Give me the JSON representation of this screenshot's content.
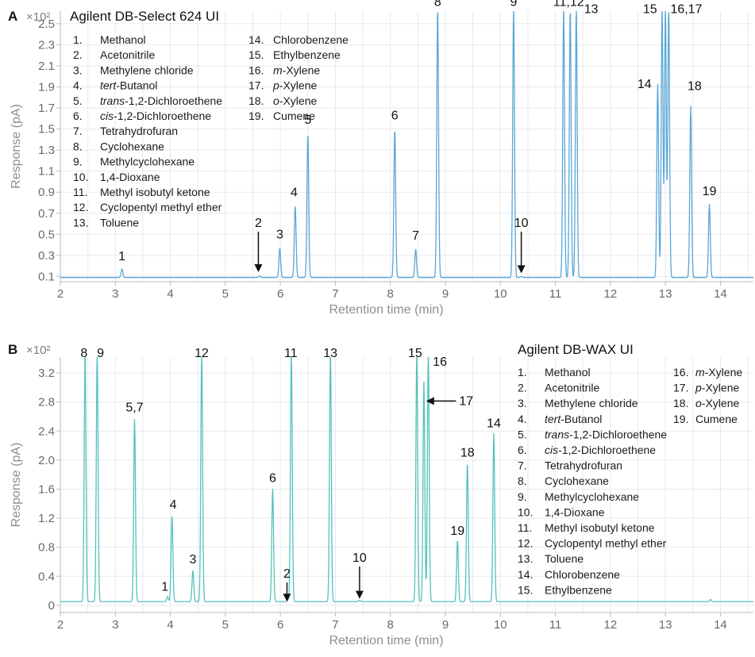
{
  "chart_data": [
    {
      "panel": "A",
      "type": "line",
      "title": "Agilent DB-Select 624 UI",
      "xlabel": "Retention time (min)",
      "ylabel": "Response (pA)",
      "y_multiplier": "×10²",
      "xlim": [
        2.0,
        14.6
      ],
      "ylim": [
        0.05,
        2.62
      ],
      "x_ticks": [
        "2",
        "3",
        "4",
        "5",
        "6",
        "7",
        "8",
        "9",
        "10",
        "11",
        "12",
        "13",
        "14"
      ],
      "y_ticks": [
        "0.1",
        "0.3",
        "0.5",
        "0.7",
        "0.9",
        "1.1",
        "1.3",
        "1.5",
        "1.7",
        "1.9",
        "2.1",
        "2.3",
        "2.5"
      ],
      "color": "#5aa6d6",
      "baseline": 0.09,
      "peaks": [
        {
          "label": "1",
          "rt": 3.12,
          "height": 0.17
        },
        {
          "label": "2",
          "rt": 5.62,
          "height": 0.105
        },
        {
          "label": "3",
          "rt": 5.99,
          "height": 0.37
        },
        {
          "label": "4",
          "rt": 6.27,
          "height": 0.77
        },
        {
          "label": "5",
          "rt": 6.5,
          "height": 1.46
        },
        {
          "label": "6",
          "rt": 8.08,
          "height": 1.5
        },
        {
          "label": "7",
          "rt": 8.46,
          "height": 0.36
        },
        {
          "label": "8",
          "rt": 8.86,
          "height": 2.65
        },
        {
          "label": "9",
          "rt": 10.24,
          "height": 2.65
        },
        {
          "label": "10",
          "rt": 10.38,
          "height": 0.1
        },
        {
          "label": "11",
          "rt": 11.15,
          "height": 2.65
        },
        {
          "label": "12",
          "rt": 11.27,
          "height": 2.65
        },
        {
          "label": "13",
          "rt": 11.38,
          "height": 2.65
        },
        {
          "label": "14",
          "rt": 12.86,
          "height": 1.93
        },
        {
          "label": "15",
          "rt": 12.94,
          "height": 2.65
        },
        {
          "label": "16",
          "rt": 13.0,
          "height": 2.65
        },
        {
          "label": "17",
          "rt": 13.06,
          "height": 2.65
        },
        {
          "label": "18",
          "rt": 13.46,
          "height": 1.72
        },
        {
          "label": "19",
          "rt": 13.8,
          "height": 0.79
        }
      ],
      "peak_labels": [
        {
          "text": "1",
          "x": 3.12,
          "y": 0.255
        },
        {
          "text": "2",
          "x": 5.6,
          "y": 0.57,
          "arrow_to": 0.14
        },
        {
          "text": "3",
          "x": 5.99,
          "y": 0.46
        },
        {
          "text": "4",
          "x": 6.25,
          "y": 0.86
        },
        {
          "text": "5",
          "x": 6.5,
          "y": 1.55
        },
        {
          "text": "6",
          "x": 8.08,
          "y": 1.59
        },
        {
          "text": "7",
          "x": 8.46,
          "y": 0.45
        },
        {
          "text": "8",
          "x": 8.86,
          "y": 2.67
        },
        {
          "text": "9",
          "x": 10.24,
          "y": 2.67
        },
        {
          "text": "10",
          "x": 10.38,
          "y": 0.57,
          "arrow_to": 0.13
        },
        {
          "text": "11,12",
          "x": 11.24,
          "y": 2.67
        },
        {
          "text": "13",
          "x": 11.65,
          "y": 2.6
        },
        {
          "text": "14",
          "x": 12.62,
          "y": 1.89
        },
        {
          "text": "15",
          "x": 12.72,
          "y": 2.6
        },
        {
          "text": "16,17",
          "x": 13.38,
          "y": 2.6
        },
        {
          "text": "18",
          "x": 13.53,
          "y": 1.87
        },
        {
          "text": "19",
          "x": 13.8,
          "y": 0.87
        }
      ],
      "legend_columns": [
        [
          {
            "num": "1.",
            "name": [
              {
                "t": "Methanol"
              }
            ]
          },
          {
            "num": "2.",
            "name": [
              {
                "t": "Acetonitrile"
              }
            ]
          },
          {
            "num": "3.",
            "name": [
              {
                "t": "Methylene chloride"
              }
            ]
          },
          {
            "num": "4.",
            "name": [
              {
                "t": "tert",
                "i": true
              },
              {
                "t": "-Butanol"
              }
            ]
          },
          {
            "num": "5.",
            "name": [
              {
                "t": "trans",
                "i": true
              },
              {
                "t": "-1,2-Dichloroethene"
              }
            ]
          },
          {
            "num": "6.",
            "name": [
              {
                "t": "cis",
                "i": true
              },
              {
                "t": "-1,2-Dichloroethene"
              }
            ]
          },
          {
            "num": "7.",
            "name": [
              {
                "t": "Tetrahydrofuran"
              }
            ]
          },
          {
            "num": "8.",
            "name": [
              {
                "t": "Cyclohexane"
              }
            ]
          },
          {
            "num": "9.",
            "name": [
              {
                "t": "Methylcyclohexane"
              }
            ]
          },
          {
            "num": "10.",
            "name": [
              {
                "t": "1,4-Dioxane"
              }
            ]
          },
          {
            "num": "11.",
            "name": [
              {
                "t": "Methyl isobutyl ketone"
              }
            ]
          },
          {
            "num": "12.",
            "name": [
              {
                "t": "Cyclopentyl methyl ether"
              }
            ]
          },
          {
            "num": "13.",
            "name": [
              {
                "t": "Toluene"
              }
            ]
          }
        ],
        [
          {
            "num": "14.",
            "name": [
              {
                "t": "Chlorobenzene"
              }
            ]
          },
          {
            "num": "15.",
            "name": [
              {
                "t": "Ethylbenzene"
              }
            ]
          },
          {
            "num": "16.",
            "name": [
              {
                "t": "m",
                "i": true
              },
              {
                "t": "-Xylene"
              }
            ]
          },
          {
            "num": "17.",
            "name": [
              {
                "t": "p",
                "i": true
              },
              {
                "t": "-Xylene"
              }
            ]
          },
          {
            "num": "18.",
            "name": [
              {
                "t": "o",
                "i": true
              },
              {
                "t": "-Xylene"
              }
            ]
          },
          {
            "num": "19.",
            "name": [
              {
                "t": "Cumene"
              }
            ]
          }
        ]
      ]
    },
    {
      "panel": "B",
      "type": "line",
      "title": "Agilent DB-WAX UI",
      "xlabel": "Retention time (min)",
      "ylabel": "Response (pA)",
      "y_multiplier": "×10²",
      "xlim": [
        2.0,
        14.6
      ],
      "ylim": [
        -0.1,
        3.42
      ],
      "x_ticks": [
        "2",
        "3",
        "4",
        "5",
        "6",
        "7",
        "8",
        "9",
        "10",
        "11",
        "12",
        "13",
        "14"
      ],
      "y_ticks": [
        "0",
        "0.4",
        "0.8",
        "1.2",
        "1.6",
        "2.0",
        "2.4",
        "2.8",
        "3.2"
      ],
      "color": "#54c2bb",
      "baseline": 0.05,
      "peaks": [
        {
          "label": "8",
          "rt": 2.45,
          "height": 3.5
        },
        {
          "label": "9",
          "rt": 2.67,
          "height": 3.5
        },
        {
          "label": "5,7",
          "rt": 3.35,
          "height": 2.57
        },
        {
          "label": "1",
          "rt": 3.95,
          "height": 0.12
        },
        {
          "label": "4",
          "rt": 4.03,
          "height": 1.24
        },
        {
          "label": "3",
          "rt": 4.41,
          "height": 0.48
        },
        {
          "label": "12",
          "rt": 4.57,
          "height": 3.5
        },
        {
          "label": "6",
          "rt": 5.86,
          "height": 1.61
        },
        {
          "label": "2",
          "rt": 6.14,
          "height": 0.08
        },
        {
          "label": "11",
          "rt": 6.2,
          "height": 3.5
        },
        {
          "label": "13",
          "rt": 6.91,
          "height": 3.5
        },
        {
          "label": "10",
          "rt": 7.44,
          "height": 0.07
        },
        {
          "label": "15",
          "rt": 8.48,
          "height": 3.5
        },
        {
          "label": "17",
          "rt": 8.61,
          "height": 3.08
        },
        {
          "label": "16",
          "rt": 8.69,
          "height": 3.5
        },
        {
          "label": "19",
          "rt": 9.22,
          "height": 0.9
        },
        {
          "label": "18",
          "rt": 9.4,
          "height": 1.97
        },
        {
          "label": "14",
          "rt": 9.88,
          "height": 2.37
        },
        {
          "label": "",
          "rt": 13.82,
          "height": 0.08
        }
      ],
      "peak_labels": [
        {
          "text": "8",
          "x": 2.43,
          "y": 3.42
        },
        {
          "text": "9",
          "x": 2.73,
          "y": 3.42
        },
        {
          "text": "5,7",
          "x": 3.35,
          "y": 2.67
        },
        {
          "text": "4",
          "x": 4.05,
          "y": 1.33
        },
        {
          "text": "1",
          "x": 3.9,
          "y": 0.2
        },
        {
          "text": "3",
          "x": 4.41,
          "y": 0.58
        },
        {
          "text": "12",
          "x": 4.57,
          "y": 3.42
        },
        {
          "text": "6",
          "x": 5.86,
          "y": 1.7
        },
        {
          "text": "2",
          "x": 6.12,
          "y": 0.38,
          "arrow_to": 0.05
        },
        {
          "text": "11",
          "x": 6.19,
          "y": 3.42
        },
        {
          "text": "13",
          "x": 6.91,
          "y": 3.42
        },
        {
          "text": "10",
          "x": 7.44,
          "y": 0.6,
          "arrow_to": 0.09
        },
        {
          "text": "15",
          "x": 8.45,
          "y": 3.42
        },
        {
          "text": "16",
          "x": 8.9,
          "y": 3.3
        },
        {
          "text": "17",
          "x": 9.25,
          "y": 2.76,
          "arrow_from": 9.0,
          "arrow_to": 8.65
        },
        {
          "text": "18",
          "x": 9.4,
          "y": 2.05
        },
        {
          "text": "19",
          "x": 9.22,
          "y": 0.97
        },
        {
          "text": "14",
          "x": 9.88,
          "y": 2.45
        }
      ],
      "legend_columns": [
        [
          {
            "num": "1.",
            "name": [
              {
                "t": "Methanol"
              }
            ]
          },
          {
            "num": "2.",
            "name": [
              {
                "t": "Acetonitrile"
              }
            ]
          },
          {
            "num": "3.",
            "name": [
              {
                "t": "Methylene chloride"
              }
            ]
          },
          {
            "num": "4.",
            "name": [
              {
                "t": "tert",
                "i": true
              },
              {
                "t": "-Butanol"
              }
            ]
          },
          {
            "num": "5.",
            "name": [
              {
                "t": "trans",
                "i": true
              },
              {
                "t": "-1,2-Dichloroethene"
              }
            ]
          },
          {
            "num": "6.",
            "name": [
              {
                "t": "cis",
                "i": true
              },
              {
                "t": "-1,2-Dichloroethene"
              }
            ]
          },
          {
            "num": "7.",
            "name": [
              {
                "t": "Tetrahydrofuran"
              }
            ]
          },
          {
            "num": "8.",
            "name": [
              {
                "t": "Cyclohexane"
              }
            ]
          },
          {
            "num": "9.",
            "name": [
              {
                "t": "Methylcyclohexane"
              }
            ]
          },
          {
            "num": "10.",
            "name": [
              {
                "t": "1,4-Dioxane"
              }
            ]
          },
          {
            "num": "11.",
            "name": [
              {
                "t": "Methyl isobutyl ketone"
              }
            ]
          },
          {
            "num": "12.",
            "name": [
              {
                "t": "Cyclopentyl methyl ether"
              }
            ]
          },
          {
            "num": "13.",
            "name": [
              {
                "t": "Toluene"
              }
            ]
          },
          {
            "num": "14.",
            "name": [
              {
                "t": "Chlorobenzene"
              }
            ]
          },
          {
            "num": "15.",
            "name": [
              {
                "t": "Ethylbenzene"
              }
            ]
          }
        ],
        [
          {
            "num": "16.",
            "name": [
              {
                "t": "m",
                "i": true
              },
              {
                "t": "-Xylene"
              }
            ]
          },
          {
            "num": "17.",
            "name": [
              {
                "t": "p",
                "i": true
              },
              {
                "t": "-Xylene"
              }
            ]
          },
          {
            "num": "18.",
            "name": [
              {
                "t": "o",
                "i": true
              },
              {
                "t": "-Xylene"
              }
            ]
          },
          {
            "num": "19.",
            "name": [
              {
                "t": "Cumene"
              }
            ]
          }
        ]
      ]
    }
  ]
}
